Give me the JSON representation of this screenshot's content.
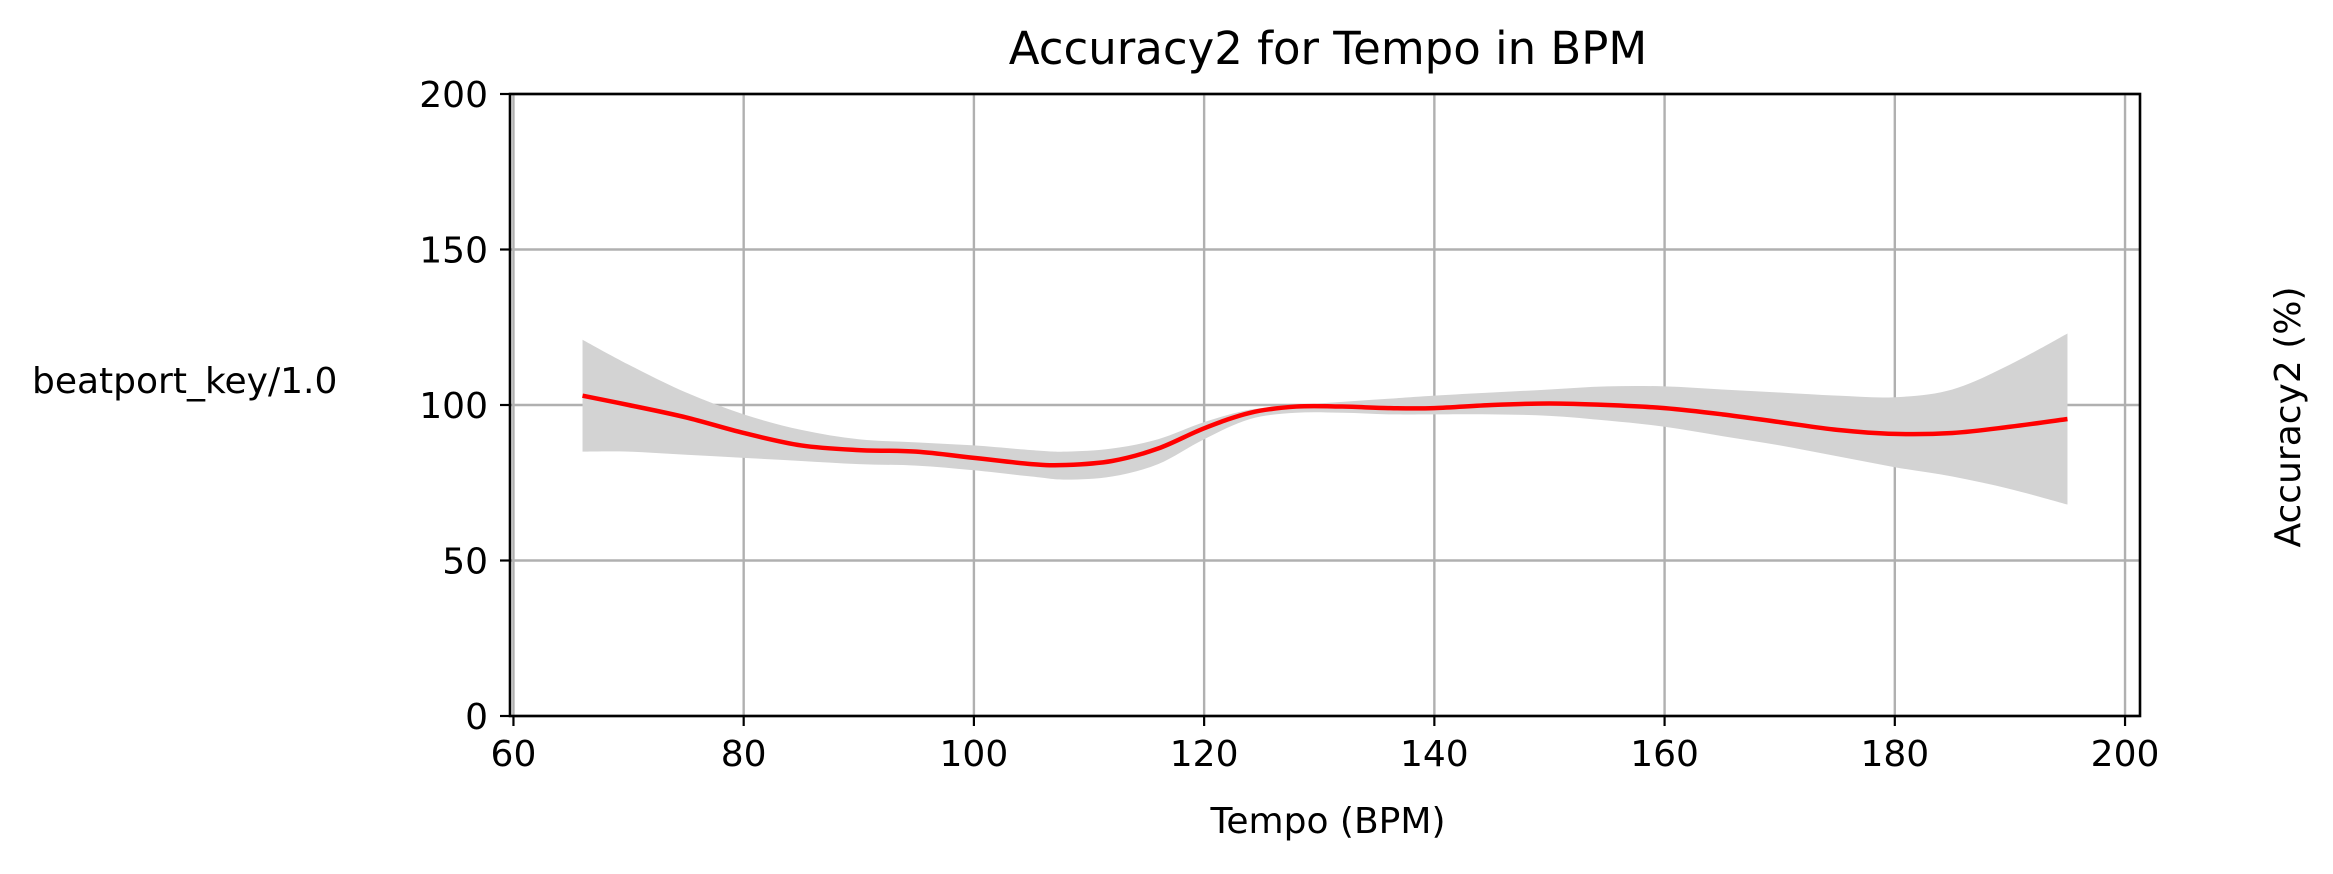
{
  "chart_data": {
    "type": "line",
    "title": "Accuracy2 for Tempo in BPM",
    "xlabel": "Tempo (BPM)",
    "ylabel": "Accuracy2 (%)",
    "row_label": "beatport_key/1.0",
    "xlim": [
      59.7,
      201.3
    ],
    "ylim": [
      0,
      200
    ],
    "x_ticks": [
      60,
      80,
      100,
      120,
      140,
      160,
      180,
      200
    ],
    "y_ticks": [
      0,
      50,
      100,
      150,
      200
    ],
    "grid": true,
    "colors": {
      "line": "#ff0000",
      "band": "#d3d3d3",
      "grid": "#b0b0b0"
    },
    "series": [
      {
        "x": [
          66,
          70,
          75,
          80,
          85,
          90,
          95,
          100,
          105,
          108,
          112,
          116,
          120,
          124,
          128,
          132,
          136,
          140,
          145,
          150,
          155,
          160,
          165,
          170,
          175,
          180,
          185,
          190,
          195
        ],
        "y": [
          103,
          100,
          96,
          91,
          87,
          85.5,
          85,
          83,
          81,
          80.7,
          82,
          86,
          92.5,
          97.5,
          99.5,
          99.5,
          99,
          99,
          100,
          100.5,
          100,
          99,
          97,
          94.5,
          92,
          90.7,
          91,
          93,
          95.5
        ],
        "lower": [
          85,
          85,
          84,
          83,
          82,
          81,
          80.5,
          79,
          77,
          76,
          77,
          81,
          89,
          95.5,
          97.5,
          97.5,
          97,
          97,
          97,
          96.5,
          95,
          93,
          90,
          87,
          83.5,
          80,
          77,
          73,
          68
        ],
        "upper": [
          121,
          113,
          104,
          97,
          92,
          89,
          88,
          87,
          85.5,
          85,
          86,
          89,
          94.5,
          98.5,
          100,
          101,
          102,
          103,
          104,
          105,
          106,
          106,
          105,
          104,
          103,
          102.5,
          105,
          113,
          123
        ]
      }
    ]
  }
}
